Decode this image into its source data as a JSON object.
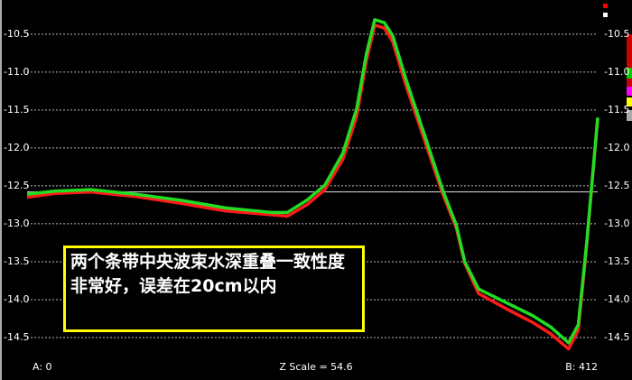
{
  "chart_data": {
    "type": "line",
    "x": [
      0,
      20,
      46,
      78,
      111,
      143,
      176,
      188,
      202,
      215,
      228,
      238,
      245,
      251,
      258,
      264,
      274,
      287,
      300,
      310,
      316,
      326,
      346,
      365,
      378,
      391,
      398,
      404,
      412
    ],
    "series": [
      {
        "name": "red",
        "color": "#ff1a1a",
        "values": [
          -12.65,
          -12.6,
          -12.58,
          -12.64,
          -12.73,
          -12.83,
          -12.88,
          -12.9,
          -12.75,
          -12.55,
          -12.15,
          -11.58,
          -10.85,
          -10.38,
          -10.42,
          -10.6,
          -11.2,
          -11.9,
          -12.6,
          -13.06,
          -13.52,
          -13.92,
          -14.12,
          -14.3,
          -14.45,
          -14.65,
          -14.4,
          -13.3,
          -11.62
        ]
      },
      {
        "name": "green",
        "color": "#22dd22",
        "values": [
          -12.61,
          -12.57,
          -12.55,
          -12.61,
          -12.69,
          -12.79,
          -12.85,
          -12.85,
          -12.69,
          -12.49,
          -12.07,
          -11.48,
          -10.76,
          -10.31,
          -10.35,
          -10.52,
          -11.12,
          -11.83,
          -12.55,
          -13.02,
          -13.5,
          -13.86,
          -14.04,
          -14.21,
          -14.36,
          -14.57,
          -14.33,
          -13.26,
          -11.6
        ]
      }
    ],
    "xlim": [
      0,
      412
    ],
    "ylim": [
      -14.75,
      -10.05
    ],
    "yticks": [
      -10.5,
      {
        "value": -11,
        "label": "-11.0"
      },
      -11.5,
      {
        "value": -12,
        "label": "-12.0"
      },
      -12.5,
      {
        "value": -13,
        "label": "-13.0"
      },
      -13.5,
      {
        "value": -14,
        "label": "-14.0"
      },
      -14.5
    ],
    "grid": true,
    "reference_line": -12.58,
    "footer": {
      "left": "A: 0",
      "center": "Z Scale = 54.6",
      "right": "B: 412"
    },
    "annotation": "两个条带中央波束水深重叠一致性度非常好，误差在20cm以内"
  }
}
